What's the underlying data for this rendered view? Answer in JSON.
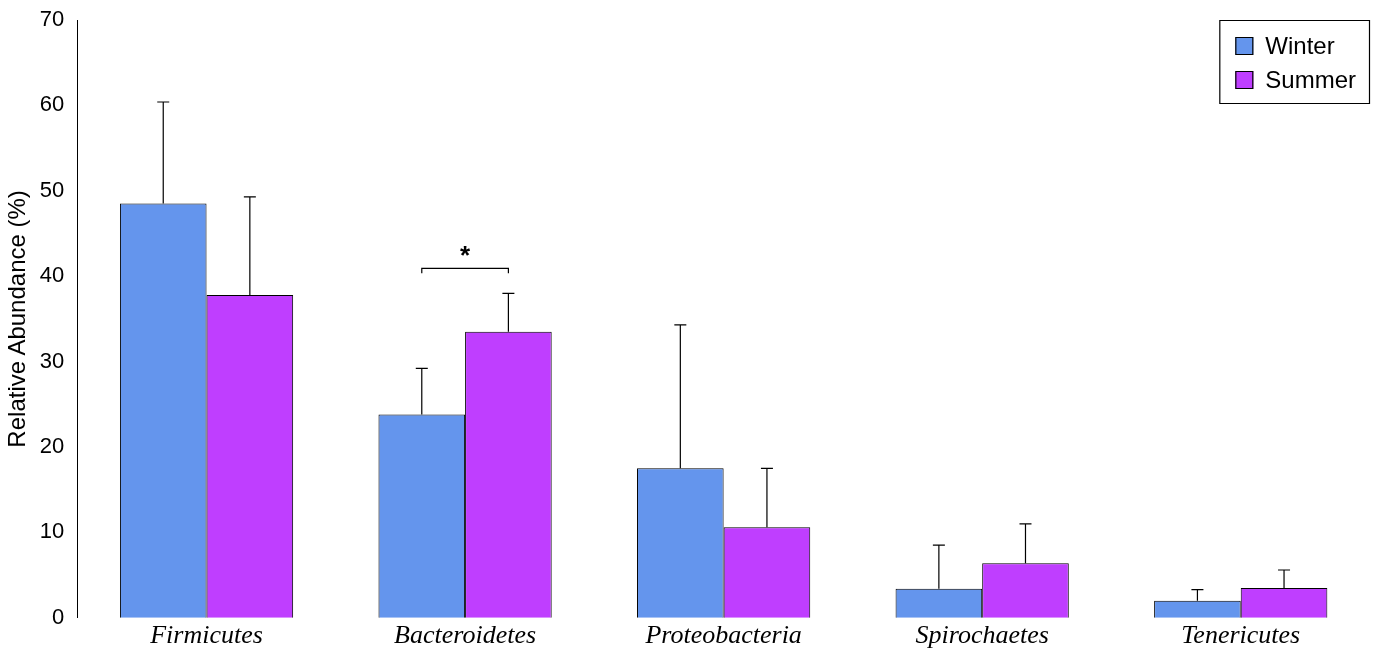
{
  "chart_data": {
    "type": "bar",
    "ylabel": "Relative Abundance (%)",
    "categories": [
      "Firmicutes",
      "Bacteroidetes",
      "Proteobacteria",
      "Spirochaetes",
      "Tenericutes"
    ],
    "series": [
      {
        "name": "Winter",
        "color": "#6495ed",
        "values": [
          48.5,
          23.8,
          17.5,
          3.4,
          2.0
        ],
        "errors": [
          [
            48.5,
            60.4
          ],
          [
            23.8,
            29.2
          ],
          [
            17.5,
            34.3
          ],
          [
            3.4,
            8.5
          ],
          [
            2.0,
            3.3
          ]
        ]
      },
      {
        "name": "Summer",
        "color": "#bf3eff",
        "values": [
          37.8,
          33.5,
          10.6,
          6.4,
          3.5
        ],
        "errors": [
          [
            37.8,
            49.3
          ],
          [
            33.5,
            38.0
          ],
          [
            10.6,
            17.5
          ],
          [
            6.4,
            11.0
          ],
          [
            3.5,
            5.6
          ]
        ]
      }
    ],
    "ylim": [
      0,
      70
    ],
    "yticks": [
      0,
      10,
      20,
      30,
      40,
      50,
      60,
      70
    ],
    "grid": false,
    "legend": "top right",
    "annotations": [
      "*"
    ]
  }
}
